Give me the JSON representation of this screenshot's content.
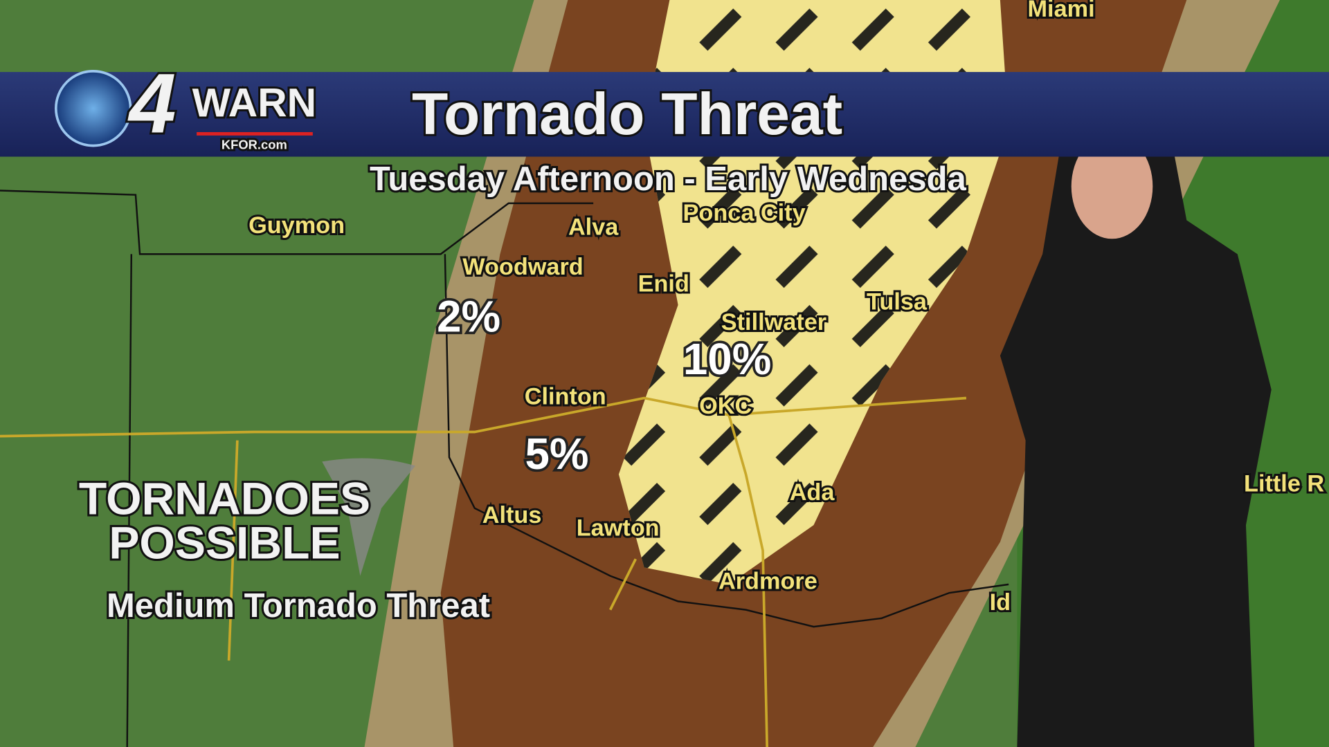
{
  "header": {
    "logo_number": "4",
    "logo_word": "WARN",
    "logo_site": "KFOR.com",
    "title": "Tornado Threat"
  },
  "subtitle": "Tuesday Afternoon - Early Wednesda",
  "cities": [
    "Miami",
    "Guymon",
    "Alva",
    "Ponca City",
    "Woodward",
    "Enid",
    "Tulsa",
    "Stillwater",
    "Clinton",
    "OKC",
    "Ada",
    "Altus",
    "Lawton",
    "Ardmore",
    "Little R",
    "Id"
  ],
  "risk_labels": [
    "2%",
    "10%",
    "5%"
  ],
  "callout": {
    "line1": "TORNADOES",
    "line2": "POSSIBLE",
    "caption": "Medium Tornado Threat"
  }
}
